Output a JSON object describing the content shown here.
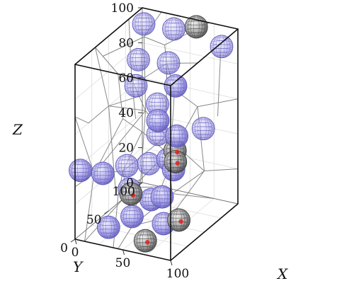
{
  "chart_data": {
    "type": "scatter3d",
    "title": "",
    "axes": {
      "x": {
        "label": "X",
        "range": [
          0,
          100
        ],
        "ticks": [
          0,
          50,
          100
        ]
      },
      "y": {
        "label": "Y",
        "range": [
          0,
          100
        ],
        "ticks": [
          0,
          50,
          100
        ]
      },
      "z": {
        "label": "Z",
        "range": [
          0,
          100
        ],
        "ticks": [
          0,
          20,
          40,
          60,
          80,
          100
        ]
      }
    },
    "grid": true,
    "colors": {
      "blue_sphere": "#6a63c8",
      "gray_sphere": "#5c5c5c",
      "red_point": "#e02020",
      "cube_edge": "#111111",
      "voronoi_edge": "#888888",
      "grid": "#dddddd"
    },
    "series": [
      {
        "kind": "blue-sphere",
        "points": [
          {
            "x": 5,
            "y": 95,
            "z": 93
          },
          {
            "x": 40,
            "y": 90,
            "z": 96
          },
          {
            "x": 90,
            "y": 90,
            "z": 92
          },
          {
            "x": 10,
            "y": 80,
            "z": 78
          },
          {
            "x": 45,
            "y": 75,
            "z": 82
          },
          {
            "x": 25,
            "y": 55,
            "z": 73
          },
          {
            "x": 70,
            "y": 50,
            "z": 80
          },
          {
            "x": 62,
            "y": 35,
            "z": 64
          },
          {
            "x": 98,
            "y": 12,
            "z": 67
          },
          {
            "x": 2,
            "y": 5,
            "z": 38
          },
          {
            "x": 15,
            "y": 20,
            "z": 33
          },
          {
            "x": 48,
            "y": 55,
            "z": 48
          },
          {
            "x": 62,
            "y": 50,
            "z": 37
          },
          {
            "x": 82,
            "y": 30,
            "z": 40
          },
          {
            "x": 18,
            "y": 55,
            "z": 13
          },
          {
            "x": 28,
            "y": 10,
            "z": 7
          },
          {
            "x": 42,
            "y": 25,
            "z": 10
          },
          {
            "x": 55,
            "y": 35,
            "z": 18
          },
          {
            "x": 70,
            "y": 30,
            "z": 23
          },
          {
            "x": 82,
            "y": 15,
            "z": 14
          },
          {
            "x": 35,
            "y": 60,
            "z": 28
          },
          {
            "x": 5,
            "y": 70,
            "z": 20
          },
          {
            "x": 92,
            "y": 60,
            "z": 55
          },
          {
            "x": 30,
            "y": 80,
            "z": 55
          }
        ]
      },
      {
        "kind": "gray-sphere",
        "points": [
          {
            "x": 60,
            "y": 95,
            "z": 98
          },
          {
            "x": 55,
            "y": 5,
            "z": 31
          },
          {
            "x": 80,
            "y": 35,
            "z": 49
          },
          {
            "x": 98,
            "y": 10,
            "z": 53
          },
          {
            "x": 70,
            "y": 5,
            "z": 6
          },
          {
            "x": 98,
            "y": 15,
            "z": 18
          }
        ]
      },
      {
        "kind": "red-point",
        "points": [
          {
            "x": 55,
            "y": 5,
            "z": 31
          },
          {
            "x": 80,
            "y": 35,
            "z": 49
          },
          {
            "x": 98,
            "y": 10,
            "z": 53
          },
          {
            "x": 98,
            "y": 15,
            "z": 18
          },
          {
            "x": 70,
            "y": 5,
            "z": 6
          }
        ]
      }
    ]
  }
}
